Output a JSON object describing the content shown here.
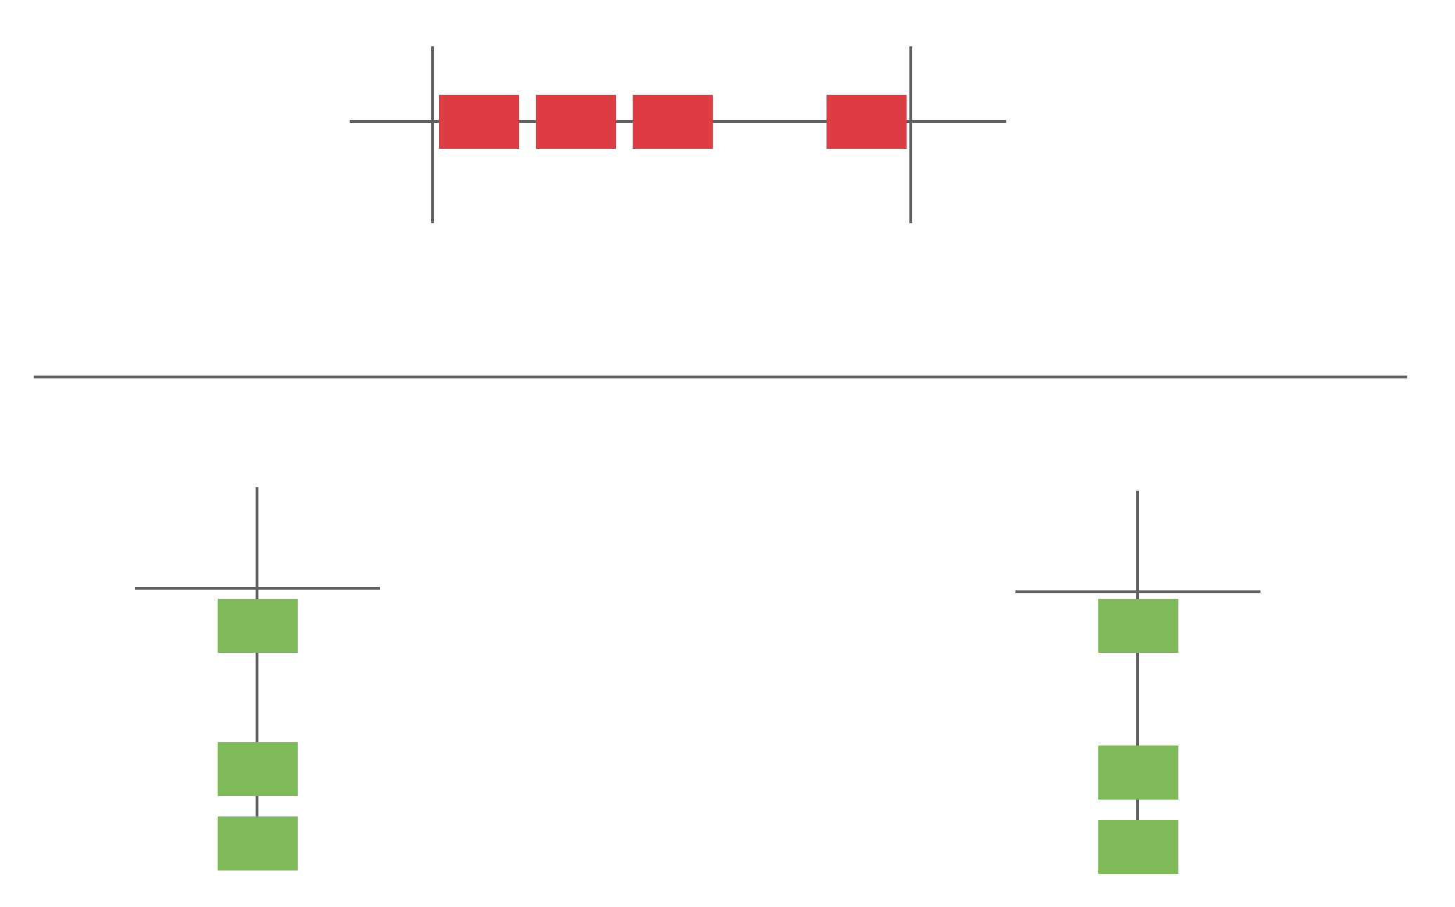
{
  "colors": {
    "background": "#ffffff",
    "line": "#5f5f62",
    "red_block": "#dc3c42",
    "green_block": "#7fba5a"
  },
  "top_group": {
    "block_color": "red",
    "block_count": 4,
    "orientation": "horizontal"
  },
  "bottom_groups": [
    {
      "id": "left",
      "block_color": "green",
      "block_count": 3,
      "orientation": "vertical"
    },
    {
      "id": "right",
      "block_color": "green",
      "block_count": 3,
      "orientation": "vertical"
    }
  ]
}
